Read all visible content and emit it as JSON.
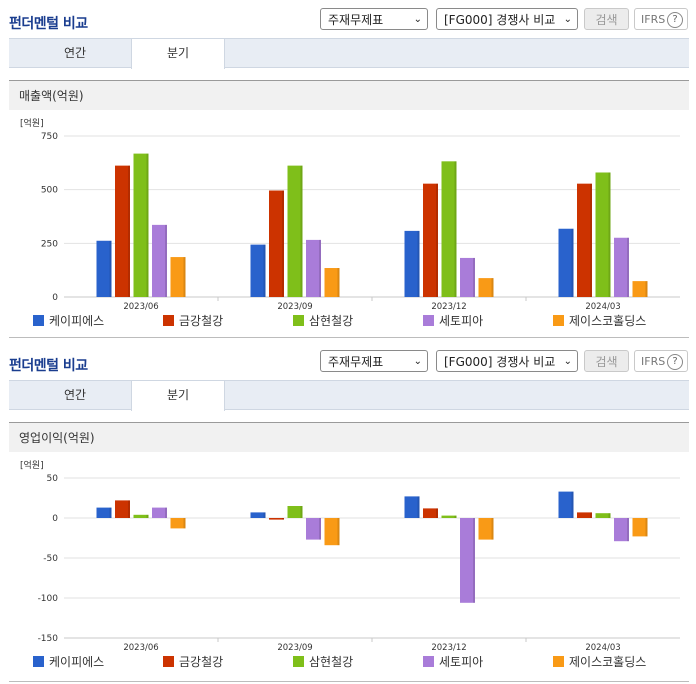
{
  "controls": {
    "report_select": "주재무제표",
    "compare_select": "[FG000] 경쟁사 비교",
    "search_label": "검색",
    "ifrs_label": "IFRS",
    "help_glyph": "?",
    "dropdown_glyph": "⌄"
  },
  "tabs": {
    "annual": "연간",
    "quarterly": "분기"
  },
  "panels": [
    {
      "title": "펀더멘털 비교"
    },
    {
      "title": "펀더멘털 비교"
    }
  ],
  "colors": {
    "케이피에스": "#2962cc",
    "금강철강": "#cc3300",
    "삼현철강": "#7fbf1a",
    "세토피아": "#a97cd9",
    "제이스코홀딩스": "#f99a16"
  },
  "chart_data": [
    {
      "type": "bar",
      "title": "매출액(억원)",
      "unit_label": "[억원]",
      "categories": [
        "2023/06",
        "2023/09",
        "2023/12",
        "2024/03"
      ],
      "ylim": [
        0,
        750
      ],
      "yticks": [
        "0",
        "250",
        "500",
        "750"
      ],
      "ytick_values": [
        0,
        250,
        500,
        750
      ],
      "legend_position": "bottom",
      "series": [
        {
          "name": "케이피에스",
          "values": [
            262,
            244,
            308,
            318
          ]
        },
        {
          "name": "금강철강",
          "values": [
            612,
            496,
            528,
            528
          ]
        },
        {
          "name": "삼현철강",
          "values": [
            668,
            612,
            632,
            580
          ]
        },
        {
          "name": "세토피아",
          "values": [
            336,
            266,
            182,
            276
          ]
        },
        {
          "name": "제이스코홀딩스",
          "values": [
            186,
            135,
            88,
            74
          ]
        }
      ]
    },
    {
      "type": "bar",
      "title": "영업이익(억원)",
      "unit_label": "[억원]",
      "categories": [
        "2023/06",
        "2023/09",
        "2023/12",
        "2024/03"
      ],
      "ylim": [
        -150,
        50
      ],
      "yticks": [
        "50",
        "0",
        "-50",
        "-100",
        "-150"
      ],
      "ytick_values": [
        50,
        0,
        -50,
        -100,
        -150
      ],
      "legend_position": "bottom",
      "series": [
        {
          "name": "케이피에스",
          "values": [
            13,
            7,
            27,
            33
          ]
        },
        {
          "name": "금강철강",
          "values": [
            22,
            -2,
            12,
            7
          ]
        },
        {
          "name": "삼현철강",
          "values": [
            4,
            15,
            3,
            6
          ]
        },
        {
          "name": "세토피아",
          "values": [
            13,
            -27,
            -106,
            -29
          ]
        },
        {
          "name": "제이스코홀딩스",
          "values": [
            -13,
            -34,
            -27,
            -23
          ]
        }
      ]
    }
  ]
}
